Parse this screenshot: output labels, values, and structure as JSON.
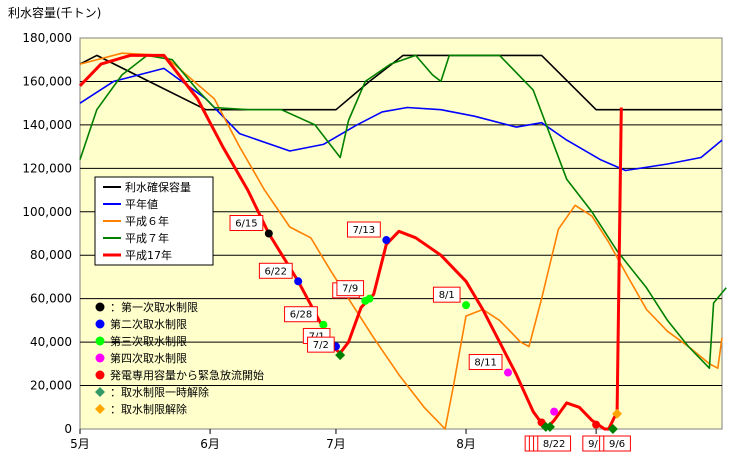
{
  "chart_data": {
    "type": "line",
    "title": "",
    "ylabel": "利水容量(千トン)",
    "xlabel": "",
    "ylim": [
      0,
      180000
    ],
    "yticks": [
      "180,000",
      "160,000",
      "140,000",
      "120,000",
      "100,000",
      "80,000",
      "60,000",
      "40,000",
      "20,000",
      "0"
    ],
    "xlim": [
      0,
      153
    ],
    "months": [
      {
        "label": "5月",
        "day": 0
      },
      {
        "label": "6月",
        "day": 31
      },
      {
        "label": "7月",
        "day": 61
      },
      {
        "label": "8月",
        "day": 92
      },
      {
        "label": "9月",
        "day": 123
      }
    ],
    "grid": true,
    "plot_background": "#ffffcc",
    "legend_position": "left-middle",
    "series": [
      {
        "name": "利水確保容量",
        "color": "#000000",
        "points": [
          [
            0,
            168000
          ],
          [
            4,
            172000
          ],
          [
            30,
            147000
          ],
          [
            61,
            147000
          ],
          [
            69,
            160000
          ],
          [
            77,
            172000
          ],
          [
            110,
            172000
          ],
          [
            123,
            147000
          ],
          [
            153,
            147000
          ]
        ]
      },
      {
        "name": "平年値",
        "color": "#0000ff",
        "points": [
          [
            0,
            150000
          ],
          [
            8,
            160000
          ],
          [
            20,
            166000
          ],
          [
            30,
            152000
          ],
          [
            38,
            136000
          ],
          [
            50,
            128000
          ],
          [
            58,
            131000
          ],
          [
            66,
            140000
          ],
          [
            72,
            146000
          ],
          [
            78,
            148000
          ],
          [
            86,
            147000
          ],
          [
            94,
            144000
          ],
          [
            104,
            139000
          ],
          [
            110,
            141000
          ],
          [
            116,
            133000
          ],
          [
            124,
            124000
          ],
          [
            130,
            119000
          ],
          [
            140,
            122000
          ],
          [
            148,
            125000
          ],
          [
            153,
            133000
          ]
        ]
      },
      {
        "name": "平成６年",
        "color": "#ff8000",
        "points": [
          [
            0,
            168000
          ],
          [
            10,
            173000
          ],
          [
            20,
            172000
          ],
          [
            32,
            152000
          ],
          [
            38,
            130000
          ],
          [
            44,
            110000
          ],
          [
            50,
            93000
          ],
          [
            55,
            88000
          ],
          [
            60,
            72000
          ],
          [
            64,
            60000
          ],
          [
            70,
            42000
          ],
          [
            76,
            25000
          ],
          [
            82,
            10000
          ],
          [
            87,
            0
          ],
          [
            89,
            20000
          ],
          [
            92,
            52000
          ],
          [
            96,
            55000
          ],
          [
            100,
            50000
          ],
          [
            105,
            40000
          ],
          [
            107,
            38000
          ],
          [
            110,
            60000
          ],
          [
            114,
            92000
          ],
          [
            118,
            103000
          ],
          [
            122,
            98000
          ],
          [
            126,
            86000
          ],
          [
            130,
            72000
          ],
          [
            135,
            55000
          ],
          [
            140,
            45000
          ],
          [
            145,
            38000
          ],
          [
            150,
            30000
          ],
          [
            152,
            28000
          ],
          [
            153,
            42000
          ]
        ]
      },
      {
        "name": "平成７年",
        "color": "#008000",
        "points": [
          [
            0,
            124000
          ],
          [
            4,
            147000
          ],
          [
            10,
            163000
          ],
          [
            16,
            172000
          ],
          [
            22,
            170000
          ],
          [
            28,
            156000
          ],
          [
            32,
            148000
          ],
          [
            40,
            147000
          ],
          [
            48,
            147000
          ],
          [
            56,
            140000
          ],
          [
            62,
            125000
          ],
          [
            64,
            142000
          ],
          [
            68,
            160000
          ],
          [
            74,
            168000
          ],
          [
            80,
            172000
          ],
          [
            84,
            163000
          ],
          [
            86,
            160000
          ],
          [
            88,
            172000
          ],
          [
            100,
            172000
          ],
          [
            108,
            156000
          ],
          [
            116,
            115000
          ],
          [
            122,
            100000
          ],
          [
            128,
            82000
          ],
          [
            135,
            65000
          ],
          [
            140,
            50000
          ],
          [
            145,
            38000
          ],
          [
            149,
            30000
          ],
          [
            150,
            28000
          ],
          [
            151,
            58000
          ],
          [
            154,
            65000
          ]
        ]
      },
      {
        "name": "平成17年",
        "color": "#ff0000",
        "points": [
          [
            0,
            158000
          ],
          [
            5,
            168000
          ],
          [
            12,
            172000
          ],
          [
            20,
            172000
          ],
          [
            28,
            152000
          ],
          [
            34,
            130000
          ],
          [
            40,
            110000
          ],
          [
            45,
            90000
          ],
          [
            52,
            68000
          ],
          [
            57,
            50000
          ],
          [
            60,
            38000
          ],
          [
            62,
            35000
          ],
          [
            64,
            40000
          ],
          [
            67,
            56000
          ],
          [
            70,
            62000
          ],
          [
            73,
            85000
          ],
          [
            76,
            91000
          ],
          [
            80,
            88000
          ],
          [
            86,
            80000
          ],
          [
            92,
            68000
          ],
          [
            96,
            55000
          ],
          [
            100,
            40000
          ],
          [
            104,
            25000
          ],
          [
            108,
            8000
          ],
          [
            111,
            0
          ],
          [
            113,
            4000
          ],
          [
            116,
            12000
          ],
          [
            119,
            10000
          ],
          [
            122,
            4000
          ],
          [
            125,
            0
          ],
          [
            126,
            0
          ],
          [
            128,
            8000
          ],
          [
            129,
            148000
          ]
        ]
      }
    ],
    "date_markers": [
      {
        "label": "6/15",
        "day": 45,
        "value": 90000,
        "dot": "#000000"
      },
      {
        "label": "6/22",
        "day": 52,
        "value": 68000,
        "dot": "#0000ff"
      },
      {
        "label": "6/28",
        "day": 58,
        "value": 48000,
        "dot": "#00ff00"
      },
      {
        "label": "7/1",
        "day": 61,
        "value": 38000,
        "dot": "#0000ff"
      },
      {
        "label": "7/2",
        "day": 62,
        "value": 34000,
        "dot": "#008000",
        "diamond": true
      },
      {
        "label": "7/8",
        "day": 68,
        "value": 59000,
        "dot": "#00ff00"
      },
      {
        "label": "7/9",
        "day": 69,
        "value": 60000,
        "dot": "#00ff00"
      },
      {
        "label": "7/13",
        "day": 73,
        "value": 87000,
        "dot": "#0000ff"
      },
      {
        "label": "8/1",
        "day": 92,
        "value": 57000,
        "dot": "#00ff00"
      },
      {
        "label": "8/11",
        "day": 102,
        "value": 26000,
        "dot": "#ff00ff"
      },
      {
        "label": "8/19",
        "day": 110,
        "value": 3000,
        "dot": "#ff0000"
      },
      {
        "label": "8/20",
        "day": 111,
        "value": 1000,
        "dot": "#008000",
        "diamond": true
      },
      {
        "label": "8/21",
        "day": 112,
        "value": 1000,
        "dot": "#008000",
        "diamond": true
      },
      {
        "label": "8/22",
        "day": 113,
        "value": 8000,
        "dot": "#ff00ff"
      },
      {
        "label": "9/1",
        "day": 123,
        "value": 2000,
        "dot": "#ff0000"
      },
      {
        "label": "9/5",
        "day": 127,
        "value": 0,
        "dot": "#008000",
        "diamond": true
      },
      {
        "label": "9/6",
        "day": 128,
        "value": 7000,
        "dot": "#ffa500",
        "diamond": true
      }
    ],
    "marker_legend": [
      {
        "label": "：第一次取水制限",
        "color": "#000000",
        "shape": "circle"
      },
      {
        "label": "第二次取水制限",
        "color": "#0000ff",
        "shape": "circle"
      },
      {
        "label": "第三次取水制限",
        "color": "#00ff00",
        "shape": "circle"
      },
      {
        "label": "第四次取水制限",
        "color": "#ff00ff",
        "shape": "circle"
      },
      {
        "label": "発電専用容量から緊急放流開始",
        "color": "#ff0000",
        "shape": "circle"
      },
      {
        "label": "：取水制限一時解除",
        "color": "#339966",
        "shape": "diamond"
      },
      {
        "label": "：取水制限解除",
        "color": "#ffa500",
        "shape": "diamond"
      }
    ]
  }
}
